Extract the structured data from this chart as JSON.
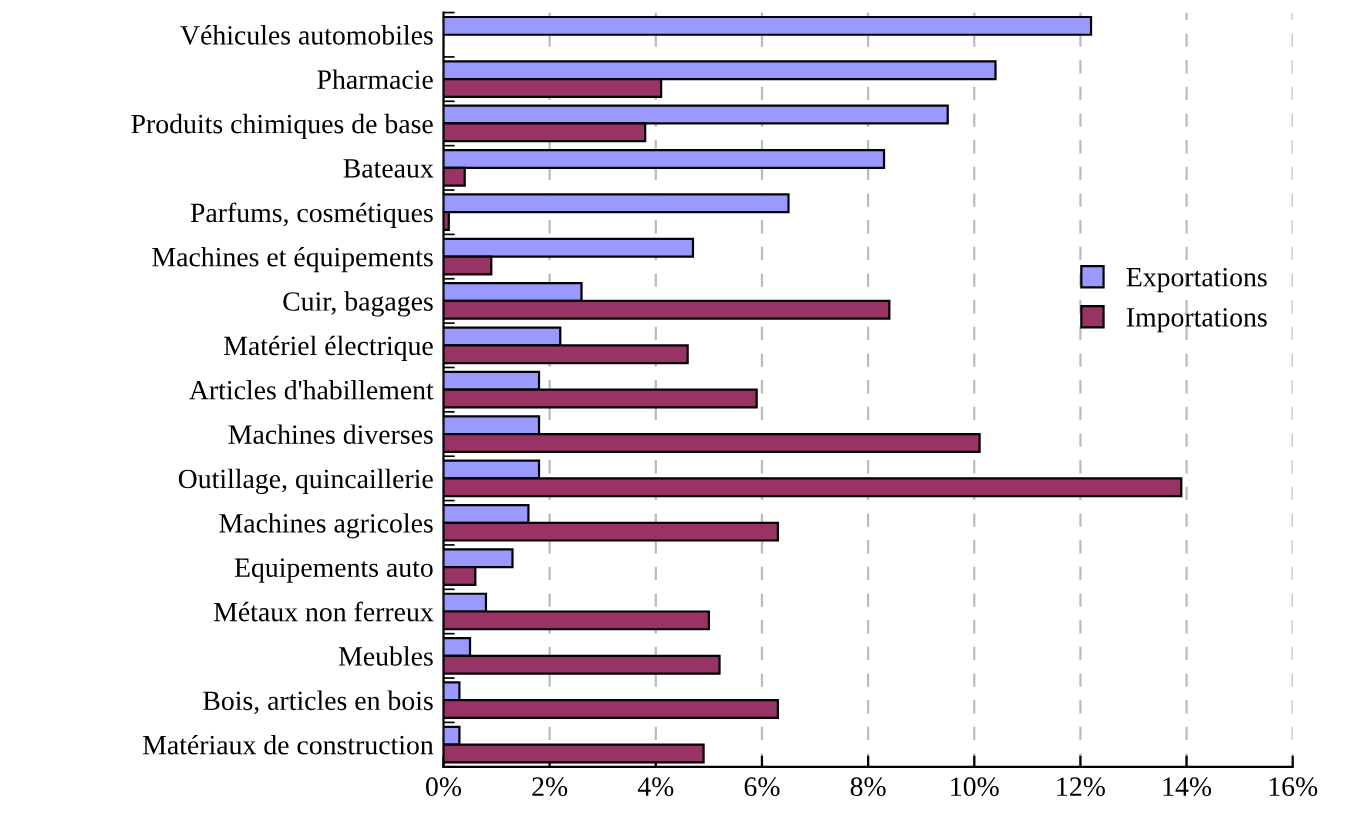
{
  "chart_data": {
    "type": "bar",
    "orientation": "horizontal",
    "categories": [
      "Véhicules automobiles",
      "Pharmacie",
      "Produits chimiques de base",
      "Bateaux",
      "Parfums, cosmétiques",
      "Machines et équipements",
      "Cuir, bagages",
      "Matériel électrique",
      "Articles d'habillement",
      "Machines diverses",
      "Outillage, quincaillerie",
      "Machines agricoles",
      "Equipements auto",
      "Métaux non ferreux",
      "Meubles",
      "Bois, articles en bois",
      "Matériaux de construction"
    ],
    "series": [
      {
        "name": "Exportations",
        "color": "#9999ff",
        "values": [
          12.2,
          10.4,
          9.5,
          8.3,
          6.5,
          4.7,
          2.6,
          2.2,
          1.8,
          1.8,
          1.8,
          1.6,
          1.3,
          0.8,
          0.5,
          0.3,
          0.3
        ]
      },
      {
        "name": "Importations",
        "color": "#993366",
        "values": [
          null,
          4.1,
          3.8,
          0.4,
          0.1,
          0.9,
          8.4,
          4.6,
          5.9,
          10.1,
          13.9,
          6.3,
          0.6,
          5.0,
          5.2,
          6.3,
          4.9
        ]
      }
    ],
    "xlim": [
      0,
      16
    ],
    "xticks": [
      {
        "value": 0,
        "label": "0%"
      },
      {
        "value": 2,
        "label": "2%"
      },
      {
        "value": 4,
        "label": "4%"
      },
      {
        "value": 6,
        "label": "6%"
      },
      {
        "value": 8,
        "label": "8%"
      },
      {
        "value": 10,
        "label": "10%"
      },
      {
        "value": 12,
        "label": "12%"
      },
      {
        "value": 14,
        "label": "14%"
      },
      {
        "value": 16,
        "label": "16%"
      }
    ],
    "grid": "x",
    "legend": "right"
  }
}
